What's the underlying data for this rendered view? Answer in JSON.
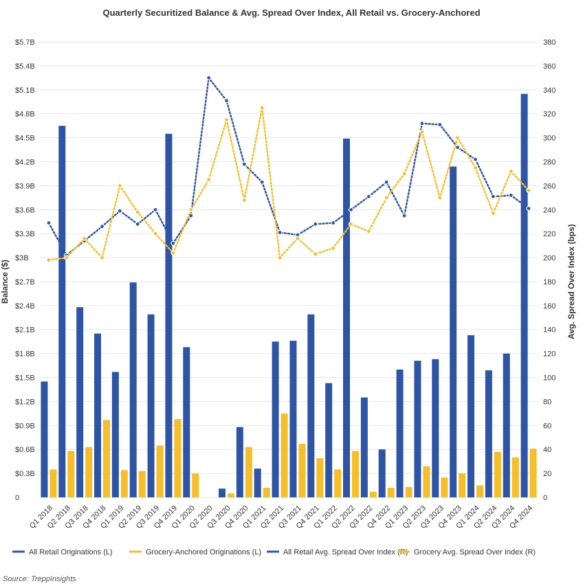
{
  "colors": {
    "all_retail": "#2E54A6",
    "grocery": "#F6BE28",
    "grid": "#e6e6e6",
    "text": "#333333"
  },
  "chart_data": {
    "type": "bar",
    "title": "Quarterly Securitized Balance & Avg. Spread Over Index, All Retail vs. Grocery-Anchored",
    "xlabel": "",
    "ylabel": "Balance ($)",
    "y2label": "Avg. Spread Over Index (bps)",
    "ylim": [
      0,
      5.7
    ],
    "y2lim": [
      0,
      380
    ],
    "y_ticks": [
      "0",
      "$0.3B",
      "$0.6B",
      "$0.9B",
      "$1.2B",
      "$1.5B",
      "$1.8B",
      "$2.1B",
      "$2.4B",
      "$2.7B",
      "$3B",
      "$3.3B",
      "$3.6B",
      "$3.9B",
      "$4.2B",
      "$4.5B",
      "$4.8B",
      "$5.1B",
      "$5.4B",
      "$5.7B"
    ],
    "y2_ticks": [
      "0",
      "20",
      "40",
      "60",
      "80",
      "100",
      "120",
      "140",
      "160",
      "180",
      "200",
      "220",
      "240",
      "260",
      "280",
      "300",
      "320",
      "340",
      "360",
      "380"
    ],
    "grid": true,
    "legend_position": "bottom",
    "categories": [
      "Q1 2018",
      "Q2 2018",
      "Q3 2018",
      "Q4 2018",
      "Q1 2019",
      "Q2 2019",
      "Q3 2019",
      "Q4 2019",
      "Q1 2020",
      "Q2 2020",
      "Q3 2020",
      "Q4 2020",
      "Q1 2021",
      "Q2 2021",
      "Q3 2021",
      "Q4 2021",
      "Q1 2022",
      "Q2 2022",
      "Q3 2022",
      "Q4 2022",
      "Q1 2023",
      "Q2 2023",
      "Q3 2023",
      "Q4 2023",
      "Q1 2024",
      "Q2 2024",
      "Q3 2024",
      "Q4 2024"
    ],
    "series": [
      {
        "name": "All Retail Originations (L)",
        "kind": "bar",
        "axis": "left",
        "values": [
          1.45,
          4.65,
          2.38,
          2.05,
          1.57,
          2.69,
          2.29,
          4.55,
          1.88,
          0,
          0.11,
          0.88,
          0.36,
          1.95,
          1.96,
          2.29,
          1.43,
          4.49,
          1.25,
          0.6,
          1.6,
          1.71,
          1.73,
          4.14,
          2.03,
          1.59,
          1.8,
          5.05
        ]
      },
      {
        "name": "Grocery-Anchored Originations (L)",
        "kind": "bar",
        "axis": "left",
        "values": [
          0.35,
          0.58,
          0.63,
          0.97,
          0.34,
          0.33,
          0.65,
          0.98,
          0.3,
          0,
          0.05,
          0.63,
          0.12,
          1.05,
          0.67,
          0.49,
          0.35,
          0.58,
          0.07,
          0.12,
          0.13,
          0.39,
          0.25,
          0.3,
          0.15,
          0.57,
          0.5,
          0.61
        ]
      },
      {
        "name": "All Retail Avg. Spread Over Index (R)",
        "kind": "line",
        "axis": "right",
        "values": [
          229,
          202,
          214,
          226,
          239,
          228,
          240,
          212,
          235,
          350,
          331,
          278,
          263,
          221,
          219,
          228,
          229,
          240,
          251,
          263,
          235,
          312,
          311,
          292,
          282,
          251,
          252,
          241
        ]
      },
      {
        "name": "Grocery Avg. Spread Over Index (R)",
        "kind": "line",
        "axis": "right",
        "values": [
          198,
          200,
          216,
          200,
          260,
          238,
          220,
          204,
          240,
          265,
          315,
          248,
          325,
          200,
          216,
          203,
          208,
          228,
          222,
          250,
          270,
          305,
          250,
          300,
          275,
          237,
          272,
          256
        ]
      }
    ]
  },
  "source": "Source: TreppInsights"
}
